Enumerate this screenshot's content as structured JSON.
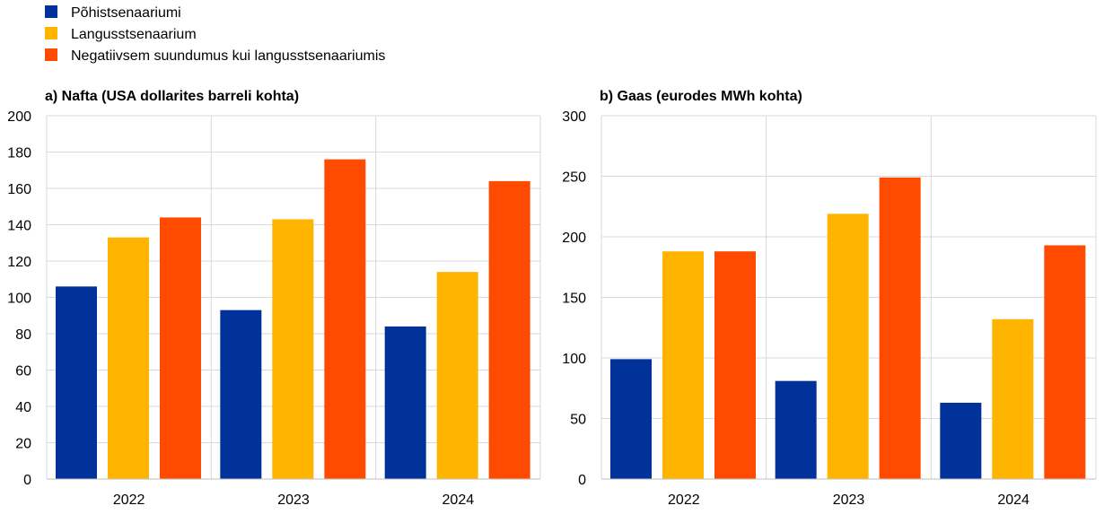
{
  "legend": [
    {
      "name": "Põhistsenaariumi",
      "color": "#003299"
    },
    {
      "name": "Langusstsenaarium",
      "color": "#FFB400"
    },
    {
      "name": "Negatiivsem suundumus kui langusstsenaariumis",
      "color": "#FF4B00"
    }
  ],
  "chart_data": [
    {
      "type": "bar",
      "title": "a) Nafta (USA dollarites barreli kohta)",
      "categories": [
        "2022",
        "2023",
        "2024"
      ],
      "ylim": [
        0,
        200
      ],
      "yticks": [
        0,
        20,
        40,
        60,
        80,
        100,
        120,
        140,
        160,
        180,
        200
      ],
      "grid": true,
      "legend_placement": "top-left",
      "series": [
        {
          "name": "Põhistsenaariumi",
          "values": [
            106,
            93,
            84
          ]
        },
        {
          "name": "Langusstsenaarium",
          "values": [
            133,
            143,
            114
          ]
        },
        {
          "name": "Negatiivsem suundumus kui langusstsenaariumis",
          "values": [
            144,
            176,
            164
          ]
        }
      ]
    },
    {
      "type": "bar",
      "title": "b) Gaas (eurodes MWh kohta)",
      "categories": [
        "2022",
        "2023",
        "2024"
      ],
      "ylim": [
        0,
        300
      ],
      "yticks": [
        0,
        50,
        100,
        150,
        200,
        250,
        300
      ],
      "grid": true,
      "legend_placement": "top-left",
      "series": [
        {
          "name": "Põhistsenaariumi",
          "values": [
            99,
            81,
            63
          ]
        },
        {
          "name": "Langusstsenaarium",
          "values": [
            188,
            219,
            132
          ]
        },
        {
          "name": "Negatiivsem suundumus kui langusstsenaariumis",
          "values": [
            188,
            249,
            193
          ]
        }
      ]
    }
  ]
}
